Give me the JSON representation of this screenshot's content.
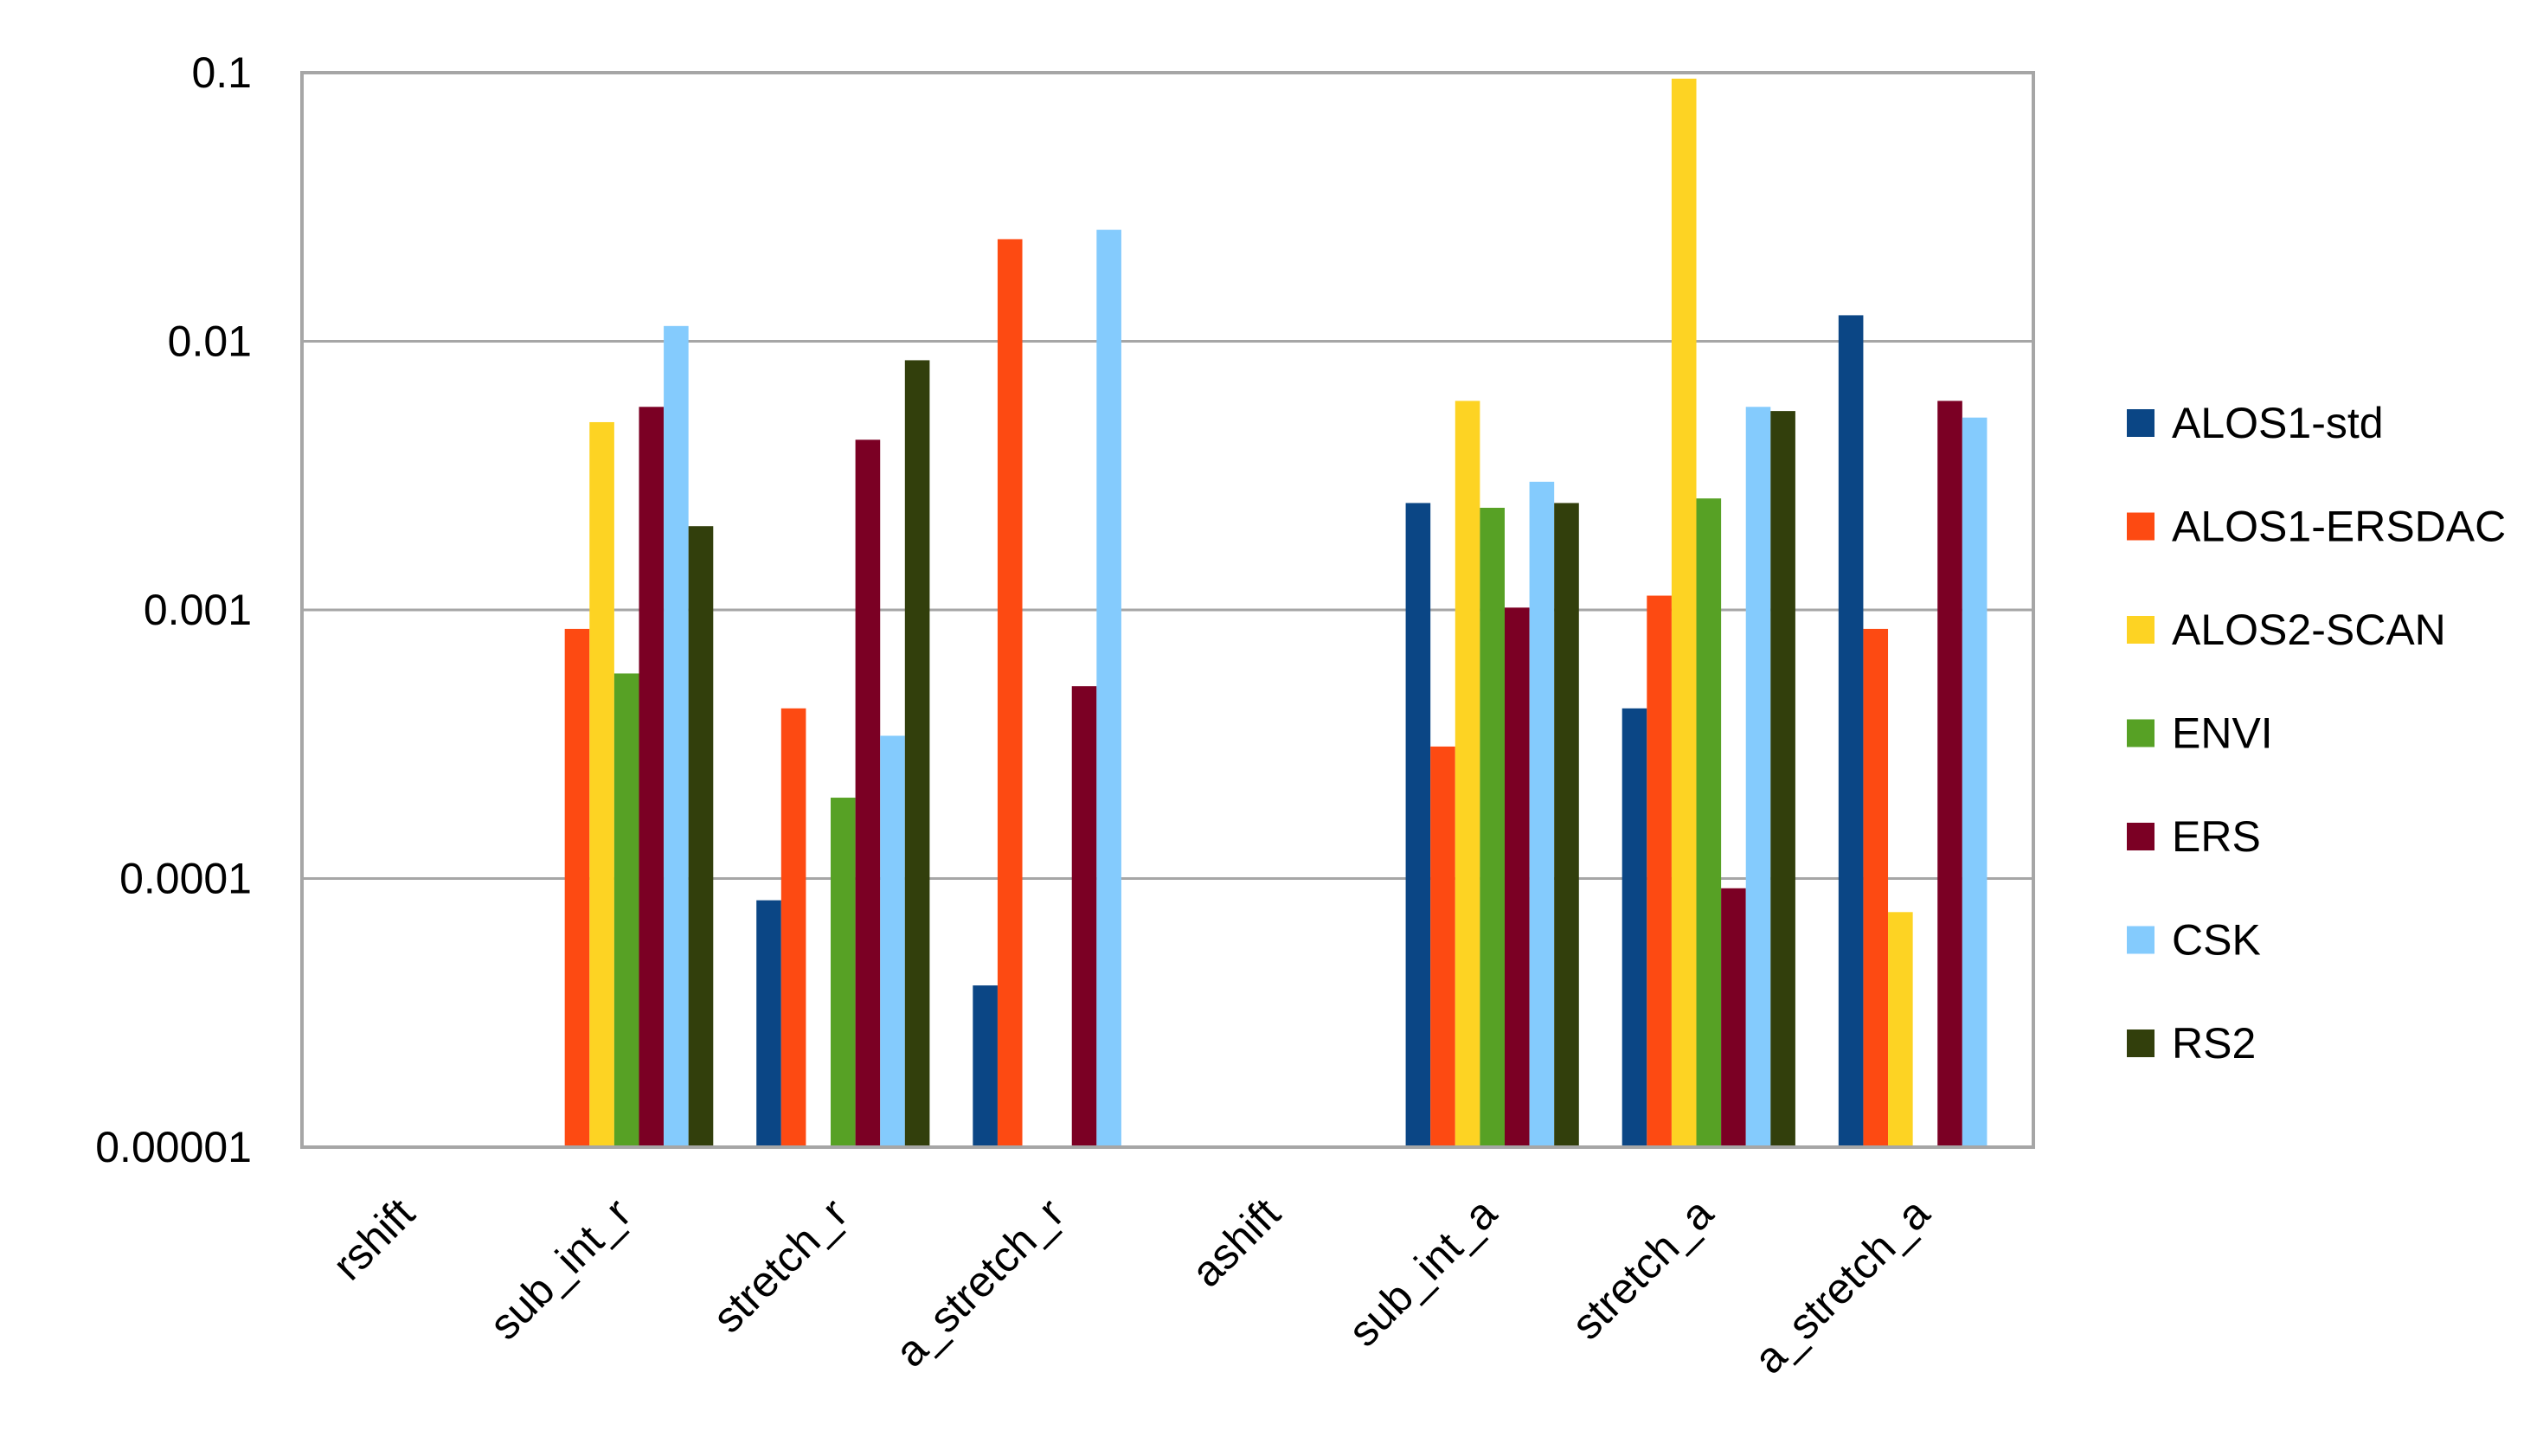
{
  "chart_data": {
    "type": "bar",
    "yscale": "log",
    "ylim": [
      1e-05,
      0.1
    ],
    "yticks": [
      "0.1",
      "0.01",
      "0.001",
      "0.0001",
      "0.00001"
    ],
    "ytick_values": [
      0.1,
      0.01,
      0.001,
      0.0001,
      1e-05
    ],
    "grid": true,
    "legend_position": "right",
    "categories": [
      "rshift",
      "sub_int_r",
      "stretch_r",
      "a_stretch_r",
      "ashift",
      "sub_int_a",
      "stretch_a",
      "a_stretch_a"
    ],
    "series": [
      {
        "name": "ALOS1-std",
        "color": "#0b4685",
        "values": [
          null,
          null,
          8.3e-05,
          4e-05,
          null,
          0.0025,
          0.00043,
          0.0125
        ]
      },
      {
        "name": "ALOS1-ERSDAC",
        "color": "#fd4a12",
        "values": [
          null,
          0.00085,
          0.00043,
          0.024,
          null,
          0.00031,
          0.00113,
          0.00085
        ]
      },
      {
        "name": "ALOS2-SCAN",
        "color": "#fdd323",
        "values": [
          null,
          0.005,
          null,
          null,
          null,
          0.006,
          0.095,
          7.5e-05
        ]
      },
      {
        "name": "ENVI",
        "color": "#57a125",
        "values": [
          null,
          0.00058,
          0.0002,
          null,
          null,
          0.0024,
          0.0026,
          null
        ]
      },
      {
        "name": "ERS",
        "color": "#7b0024",
        "values": [
          null,
          0.0057,
          0.0043,
          0.00052,
          null,
          0.00102,
          9.2e-05,
          0.006
        ]
      },
      {
        "name": "CSK",
        "color": "#84cbfd",
        "values": [
          null,
          0.0114,
          0.00034,
          0.026,
          null,
          0.003,
          0.0057,
          0.0052
        ]
      },
      {
        "name": "RS2",
        "color": "#323f0c",
        "values": [
          null,
          0.00205,
          0.0085,
          null,
          null,
          0.0025,
          0.0055,
          null
        ]
      }
    ]
  }
}
